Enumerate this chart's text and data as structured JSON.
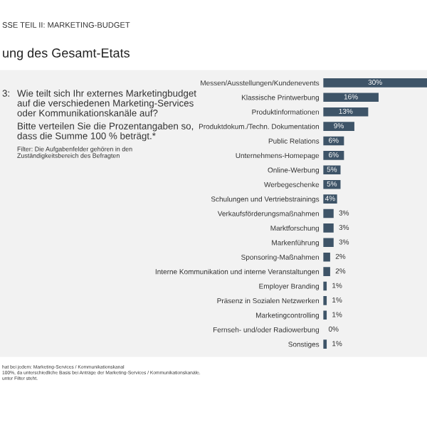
{
  "chart_data": {
    "type": "bar",
    "orientation": "horizontal",
    "title": "ung des Gesamt-Etats",
    "categories": [
      "Messen/Ausstellungen/Kundenevents",
      "Klassische Printwerbung",
      "Produktinformationen",
      "Produktdokum./Techn. Dokumentation",
      "Public Relations",
      "Unternehmens-Homepage",
      "Online-Werbung",
      "Werbegeschenke",
      "Schulungen und Vertriebstrainings",
      "Verkaufsförderungsmaßnahmen",
      "Marktforschung",
      "Markenführung",
      "Sponsoring-Maßnahmen",
      "Interne Kommunikation und interne Veranstaltungen",
      "Employer Branding",
      "Präsenz in Sozialen Netzwerken",
      "Marketingcontrolling",
      "Fernseh- und/oder Radiowerbung",
      "Sonstiges"
    ],
    "values": [
      30,
      16,
      13,
      9,
      6,
      6,
      5,
      5,
      4,
      3,
      3,
      3,
      2,
      2,
      1,
      1,
      1,
      0,
      1
    ],
    "color": "#3e5468",
    "value_labels": [
      "30%",
      "16%",
      "13%",
      "9%",
      "6%",
      "6%",
      "5%",
      "5%",
      "4%",
      "3%",
      "3%",
      "3%",
      "2%",
      "2%",
      "1%",
      "1%",
      "1%",
      "0%",
      "1%"
    ],
    "grid": false,
    "legend": false,
    "annotations": [
      "SSE TEIL II: MARKETING-BUDGET",
      "3:",
      "Wie teilt sich Ihr externes Marketingbudget\nauf die verschiedenen Marketing-Services\noder Kommunikationskanäle auf?",
      "Bitte verteilen Sie die Prozentangaben so,\ndass die Summe 100 % beträgt.*",
      "Filter: Die Aufgabenfelder gehören in den\nZuständigkeitsbereich des Befragten",
      "hat bei jedem: Marketing-Services / Kommunikationskanal",
      "100%, da unterschiedliche Basis bei Anträge der Marketing-Services / Kommunikationskanäle.",
      "unter Filter steht."
    ]
  }
}
